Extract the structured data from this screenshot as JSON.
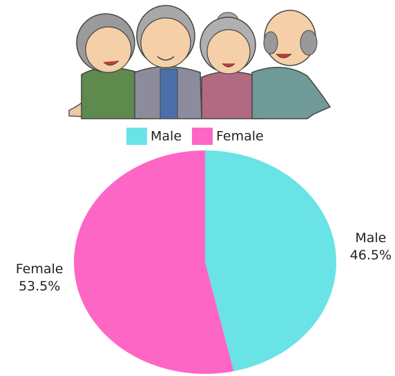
{
  "chart_data": {
    "type": "pie",
    "categories": [
      "Male",
      "Female"
    ],
    "values": [
      46.5,
      53.5
    ],
    "value_labels": [
      "46.5%",
      "53.5%"
    ],
    "colors": [
      "#6ae3e6",
      "#fd66c5"
    ],
    "legend": "top"
  }
}
